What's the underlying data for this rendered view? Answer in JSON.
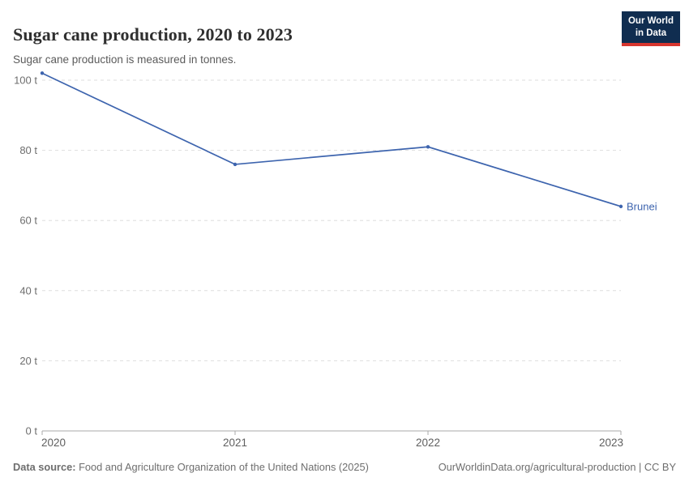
{
  "header": {
    "title": "Sugar cane production, 2020 to 2023",
    "subtitle": "Sugar cane production is measured in tonnes.",
    "logo": {
      "line1": "Our World",
      "line2": "in Data"
    }
  },
  "chart_data": {
    "type": "line",
    "title": "Sugar cane production, 2020 to 2023",
    "subtitle": "Sugar cane production is measured in tonnes.",
    "unit": "t",
    "categories": [
      2020,
      2021,
      2022,
      2023
    ],
    "series": [
      {
        "name": "Brunei",
        "x": [
          2020,
          2021,
          2022,
          2023
        ],
        "values": [
          102,
          76,
          81,
          64
        ]
      }
    ],
    "xlabel": "",
    "ylabel": "",
    "ylim": [
      0,
      100
    ],
    "yticks": [
      0,
      20,
      40,
      60,
      80,
      100
    ],
    "xticks": [
      2020,
      2021,
      2022,
      2023
    ],
    "grid": "horizontal-dashed",
    "legend_position": "end-of-line-label",
    "end_label": "Brunei"
  },
  "colors": {
    "line": "#3d64ae",
    "series_label": "#3d64ae",
    "gridline": "#dedede",
    "axis": "#a8a8a8",
    "y_tick_text": "#6e6e6e",
    "x_tick_text": "#5f5f5f",
    "logo_navy": "#102d50",
    "logo_red": "#d7352e"
  },
  "footer": {
    "source_label": "Data source:",
    "source_text": " Food and Agriculture Organization of the United Nations (2025)",
    "link_text": "OurWorldinData.org/agricultural-production | CC BY"
  }
}
